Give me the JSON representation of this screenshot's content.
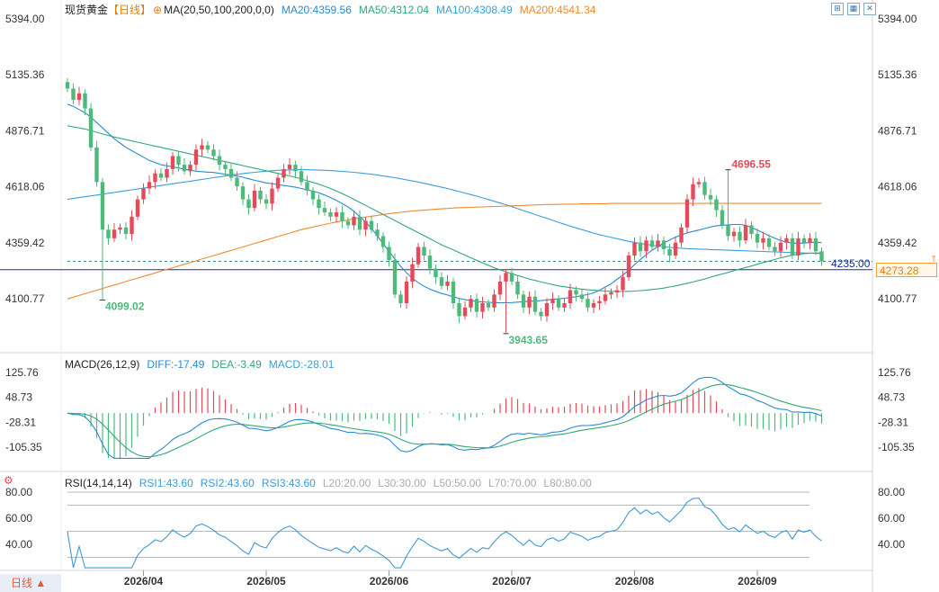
{
  "header": {
    "symbol": "现货黄金",
    "period": "【日线】",
    "ma_label": "MA(20,50,100,200,0,0)",
    "ma20": "MA20:4359.56",
    "ma50": "MA50:4312.04",
    "ma100": "MA100:4308.49",
    "ma200": "MA200:4541.34"
  },
  "macd_legend": {
    "label": "MACD(26,12,9)",
    "diff": "DIFF:-17.49",
    "dea": "DEA:-3.49",
    "macd": "MACD:-28.01"
  },
  "rsi_legend": {
    "label": "RSI(14,14,14)",
    "rsi1": "RSI1:43.60",
    "rsi2": "RSI2:43.60",
    "rsi3": "RSI3:43.60",
    "l20": "L20:20.00",
    "l30": "L30:30.00",
    "l50": "L50:50.00",
    "l70": "L70:70.00",
    "l80": "L80:80.00"
  },
  "colors": {
    "up": "#e34a5a",
    "down": "#4cba7a",
    "ma20": "#2a8ad4",
    "ma50": "#2fa878",
    "ma100": "#3aa0d8",
    "ma200": "#f08a30",
    "diff": "#2a8ad4",
    "dea": "#2fa878",
    "rsi": "#3a9ad8",
    "hline": "#1a2aa0"
  },
  "period_button": "日线 ▲",
  "last_price_tag": "4273.28",
  "hline_label": "4235.00",
  "chart_data": [
    {
      "type": "candlestick",
      "title": "现货黄金",
      "y_ticks": [
        "5394.00",
        "5135.36",
        "4876.71",
        "4618.06",
        "4359.42",
        "4100.77"
      ],
      "y_tick_values": [
        5394.0,
        5135.36,
        4876.71,
        4618.06,
        4359.42,
        4100.77
      ],
      "ylim": [
        4100.77,
        5394.0
      ],
      "x_ticks": [
        "2026/04",
        "2026/05",
        "2026/06",
        "2026/07",
        "2026/08",
        "2026/09"
      ],
      "x_tick_index": [
        13,
        34,
        55,
        76,
        97,
        118
      ],
      "annotations": [
        {
          "text": "4099.02",
          "index": 6,
          "value": 4099.02,
          "kind": "low"
        },
        {
          "text": "3943.65",
          "index": 75,
          "value": 3943.65,
          "kind": "low"
        },
        {
          "text": "4696.55",
          "index": 113,
          "value": 4696.55,
          "kind": "high"
        }
      ],
      "horizontal_line": 4235.0,
      "last_price": 4273.28,
      "close": [
        5072,
        5020,
        5050,
        4980,
        4800,
        4640,
        4420,
        4380,
        4420,
        4430,
        4400,
        4480,
        4560,
        4610,
        4640,
        4680,
        4660,
        4700,
        4760,
        4720,
        4690,
        4720,
        4790,
        4810,
        4790,
        4760,
        4720,
        4700,
        4660,
        4620,
        4560,
        4520,
        4600,
        4560,
        4540,
        4610,
        4660,
        4700,
        4720,
        4690,
        4640,
        4600,
        4560,
        4520,
        4500,
        4480,
        4500,
        4460,
        4440,
        4480,
        4420,
        4460,
        4420,
        4390,
        4340,
        4280,
        4120,
        4080,
        4180,
        4260,
        4340,
        4300,
        4240,
        4200,
        4160,
        4180,
        4080,
        4020,
        4060,
        4100,
        4040,
        4080,
        4060,
        4120,
        4180,
        4220,
        4180,
        4120,
        4060,
        4110,
        4040,
        4020,
        4080,
        4100,
        4060,
        4080,
        4140,
        4120,
        4100,
        4060,
        4080,
        4090,
        4120,
        4130,
        4140,
        4200,
        4300,
        4360,
        4320,
        4370,
        4340,
        4370,
        4330,
        4300,
        4360,
        4430,
        4560,
        4630,
        4640,
        4580,
        4560,
        4510,
        4440,
        4390,
        4410,
        4370,
        4440,
        4400,
        4360,
        4380,
        4340,
        4320,
        4360,
        4380,
        4300,
        4380,
        4360,
        4380,
        4320,
        4273.28
      ],
      "ma20": [
        5000,
        4990,
        4975,
        4960,
        4940,
        4915,
        4890,
        4865,
        4840,
        4820,
        4800,
        4785,
        4770,
        4755,
        4740,
        4730,
        4720,
        4715,
        4710,
        4705,
        4700,
        4695,
        4690,
        4688,
        4686,
        4684,
        4680,
        4676,
        4672,
        4668,
        4662,
        4655,
        4648,
        4642,
        4636,
        4632,
        4628,
        4624,
        4620,
        4616,
        4610,
        4604,
        4598,
        4590,
        4580,
        4568,
        4555,
        4540,
        4525,
        4505,
        4480,
        4455,
        4425,
        4392,
        4355,
        4320,
        4285,
        4250,
        4220,
        4195,
        4175,
        4158,
        4145,
        4135,
        4125,
        4118,
        4110,
        4102,
        4096,
        4092,
        4088,
        4086,
        4084,
        4083,
        4082,
        4082,
        4083,
        4085,
        4087,
        4089,
        4090,
        4092,
        4095,
        4098,
        4100,
        4103,
        4106,
        4110,
        4115,
        4120,
        4128,
        4140,
        4155,
        4170,
        4190,
        4210,
        4232,
        4258,
        4282,
        4305,
        4325,
        4342,
        4358,
        4372,
        4385,
        4395,
        4405,
        4412,
        4418,
        4425,
        4432,
        4438,
        4440,
        4442,
        4444,
        4444,
        4440,
        4430,
        4418,
        4405,
        4392,
        4380,
        4370,
        4362,
        4358,
        4356,
        4358,
        4360,
        4362,
        4359.56
      ],
      "ma50": [
        4900,
        4895,
        4890,
        4885,
        4878,
        4870,
        4862,
        4855,
        4848,
        4842,
        4836,
        4830,
        4824,
        4818,
        4812,
        4806,
        4800,
        4794,
        4788,
        4782,
        4776,
        4770,
        4764,
        4758,
        4752,
        4746,
        4740,
        4734,
        4728,
        4722,
        4716,
        4710,
        4704,
        4698,
        4692,
        4686,
        4680,
        4674,
        4668,
        4662,
        4654,
        4646,
        4638,
        4630,
        4620,
        4610,
        4598,
        4586,
        4574,
        4560,
        4546,
        4532,
        4518,
        4504,
        4490,
        4476,
        4462,
        4448,
        4434,
        4420,
        4406,
        4392,
        4378,
        4364,
        4350,
        4338,
        4326,
        4314,
        4302,
        4290,
        4278,
        4266,
        4255,
        4244,
        4234,
        4225,
        4216,
        4208,
        4200,
        4192,
        4185,
        4178,
        4172,
        4166,
        4160,
        4156,
        4152,
        4148,
        4145,
        4142,
        4140,
        4138,
        4136,
        4135,
        4134,
        4134,
        4135,
        4136,
        4138,
        4140,
        4143,
        4146,
        4150,
        4155,
        4160,
        4166,
        4172,
        4178,
        4185,
        4192,
        4200,
        4208,
        4215,
        4222,
        4230,
        4238,
        4245,
        4252,
        4260,
        4268,
        4275,
        4282,
        4290,
        4296,
        4302,
        4306,
        4309,
        4311,
        4312,
        4312.04
      ],
      "ma100": [
        4560,
        4564,
        4568,
        4572,
        4576,
        4580,
        4584,
        4588,
        4592,
        4596,
        4600,
        4604,
        4608,
        4612,
        4616,
        4620,
        4624,
        4628,
        4632,
        4636,
        4640,
        4644,
        4648,
        4652,
        4656,
        4660,
        4664,
        4668,
        4672,
        4676,
        4679,
        4682,
        4685,
        4688,
        4690,
        4692,
        4694,
        4695,
        4696,
        4697,
        4697,
        4697,
        4696,
        4695,
        4694,
        4693,
        4691,
        4689,
        4687,
        4685,
        4682,
        4679,
        4676,
        4672,
        4668,
        4664,
        4660,
        4655,
        4650,
        4645,
        4640,
        4634,
        4628,
        4622,
        4616,
        4610,
        4603,
        4596,
        4589,
        4582,
        4575,
        4567,
        4559,
        4551,
        4543,
        4535,
        4526,
        4517,
        4508,
        4499,
        4490,
        4481,
        4472,
        4463,
        4454,
        4445,
        4436,
        4428,
        4420,
        4412,
        4404,
        4397,
        4390,
        4384,
        4378,
        4372,
        4366,
        4361,
        4356,
        4352,
        4348,
        4344,
        4341,
        4338,
        4336,
        4334,
        4332,
        4331,
        4330,
        4329,
        4328,
        4327,
        4326,
        4325,
        4324,
        4323,
        4322,
        4321,
        4320,
        4319,
        4318,
        4317,
        4316,
        4315,
        4314,
        4313,
        4312,
        4311,
        4310,
        4308.49
      ],
      "ma200": [
        4100,
        4108,
        4116,
        4124,
        4132,
        4140,
        4148,
        4156,
        4164,
        4172,
        4180,
        4188,
        4196,
        4204,
        4212,
        4220,
        4228,
        4236,
        4244,
        4252,
        4260,
        4268,
        4276,
        4284,
        4292,
        4300,
        4308,
        4316,
        4324,
        4332,
        4340,
        4348,
        4356,
        4364,
        4372,
        4380,
        4388,
        4396,
        4404,
        4412,
        4420,
        4426,
        4432,
        4438,
        4444,
        4450,
        4455,
        4460,
        4465,
        4470,
        4474,
        4478,
        4482,
        4486,
        4490,
        4494,
        4497,
        4500,
        4503,
        4506,
        4508,
        4510,
        4512,
        4514,
        4516,
        4518,
        4520,
        4521,
        4522,
        4523,
        4524,
        4525,
        4526,
        4527,
        4528,
        4529,
        4530,
        4531,
        4532,
        4533,
        4534,
        4535,
        4536,
        4536,
        4537,
        4537,
        4538,
        4538,
        4539,
        4539,
        4540,
        4540,
        4540,
        4541,
        4541,
        4541,
        4541,
        4541,
        4541,
        4541,
        4541,
        4541,
        4541,
        4541,
        4541,
        4541,
        4541,
        4541,
        4541,
        4541,
        4541,
        4541,
        4541,
        4541,
        4541,
        4541,
        4541,
        4541,
        4541,
        4541,
        4541,
        4541,
        4541,
        4541,
        4541,
        4541,
        4541,
        4541,
        4541,
        4541.34
      ]
    },
    {
      "type": "macd",
      "y_ticks": [
        "125.76",
        "48.73",
        "-28.31",
        "-105.35"
      ],
      "y_tick_values": [
        125.76,
        48.73,
        -28.31,
        -105.35
      ],
      "ylim": [
        -150,
        140
      ]
    },
    {
      "type": "rsi",
      "y_ticks": [
        "80.00",
        "60.00",
        "40.00"
      ],
      "y_tick_values": [
        80,
        60,
        40
      ],
      "ylim": [
        20,
        85
      ],
      "levels": [
        20,
        30,
        50,
        70,
        80
      ]
    }
  ]
}
